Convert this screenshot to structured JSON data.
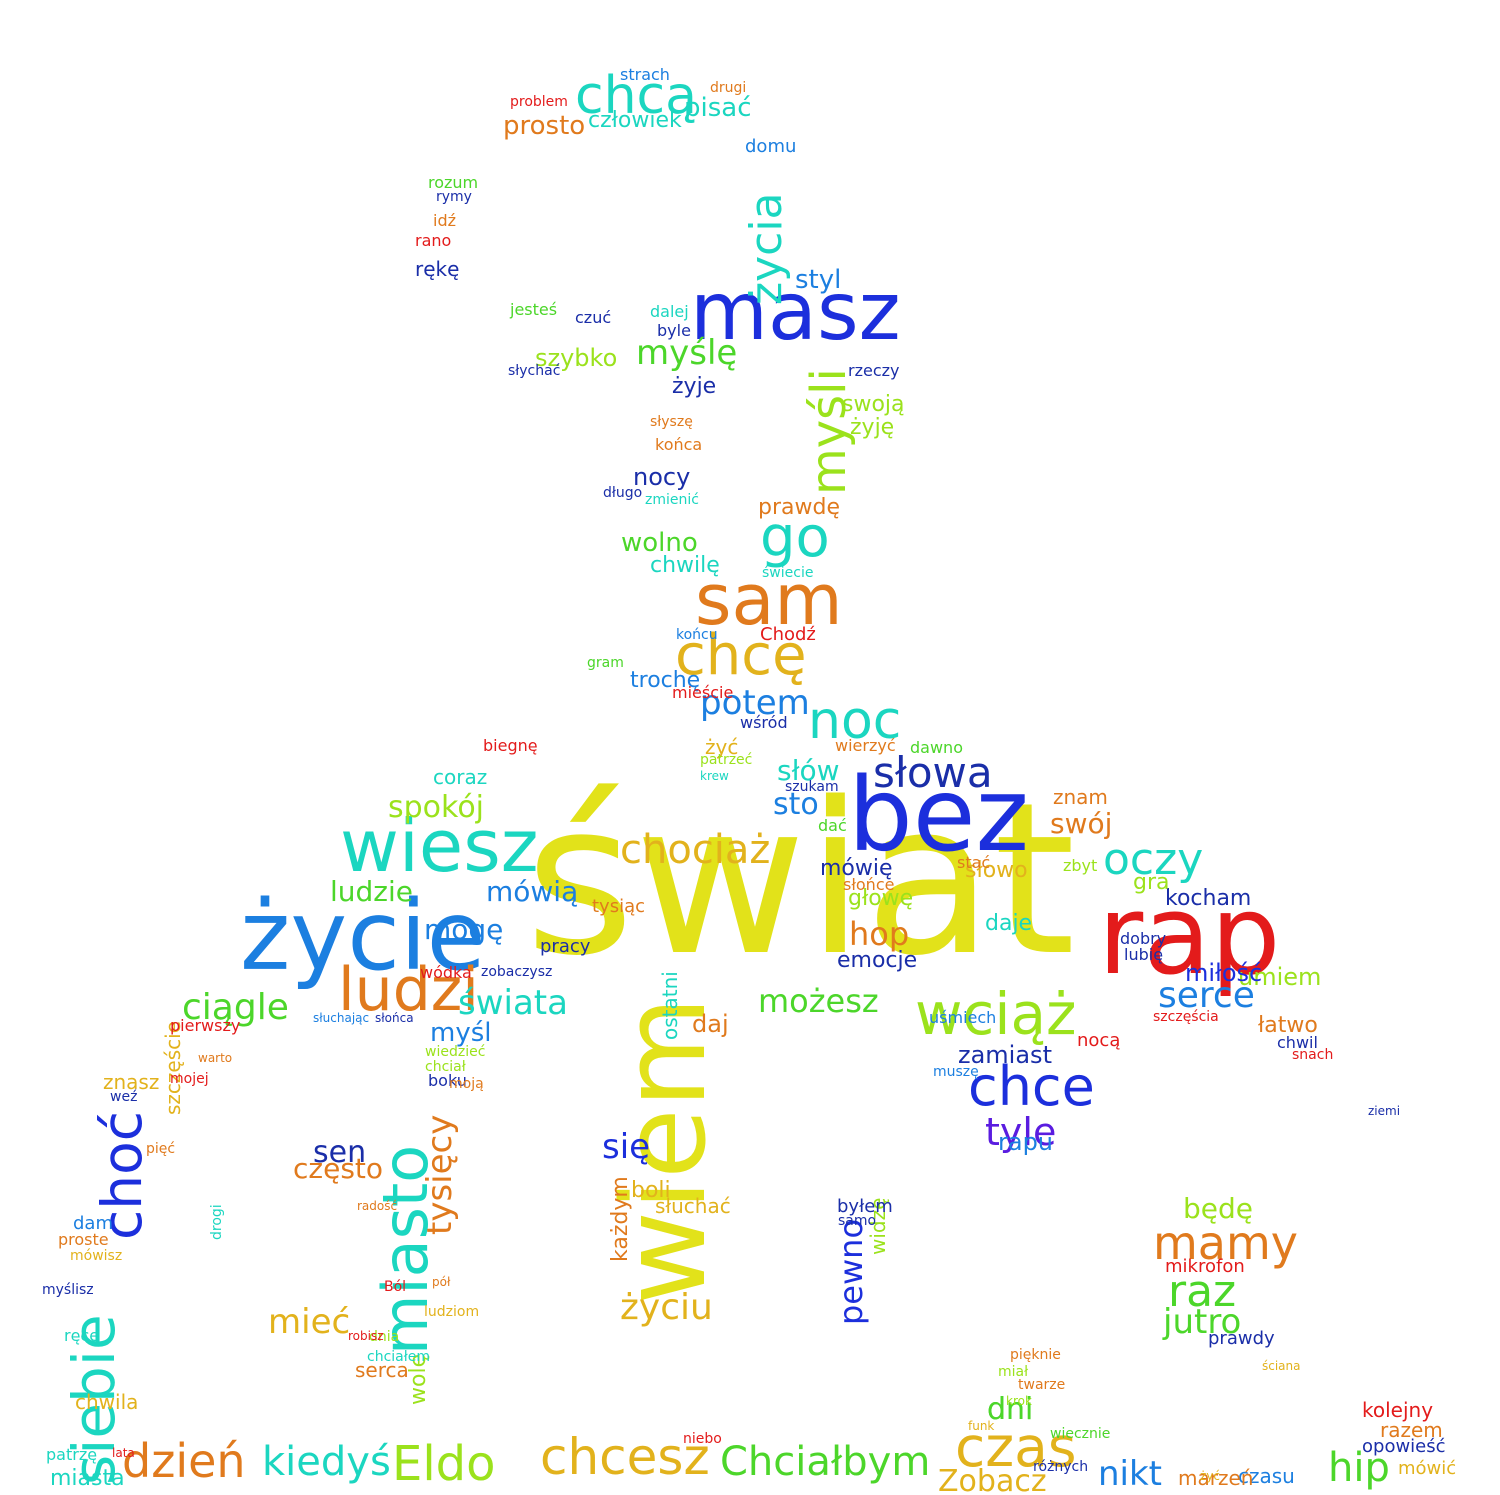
{
  "colors": {
    "yellow": "#e2e21a",
    "blue": "#1c2fdc",
    "red": "#e31b1b",
    "orange": "#e07a1d",
    "teal": "#1bd6c0",
    "green": "#4cd62a",
    "lime": "#9be21c",
    "sky": "#1c7fe0",
    "gold": "#e2b21c",
    "navy": "#1a2ea8",
    "violet": "#5a1ce0"
  },
  "words": [
    {
      "id": "swiat",
      "text": "świat",
      "color": "yellow"
    },
    {
      "id": "bez",
      "text": "bez",
      "color": "blue"
    },
    {
      "id": "rap",
      "text": "rap",
      "color": "red"
    },
    {
      "id": "wiem",
      "text": "wiem",
      "color": "yellow"
    },
    {
      "id": "zycie",
      "text": "życie",
      "color": "sky"
    },
    {
      "id": "wiesz",
      "text": "wiesz",
      "color": "teal"
    },
    {
      "id": "masz",
      "text": "masz",
      "color": "blue"
    },
    {
      "id": "sam",
      "text": "sam",
      "color": "orange"
    },
    {
      "id": "chce-top",
      "text": "chcą",
      "color": "teal"
    },
    {
      "id": "chcesz",
      "text": "chcesz",
      "color": "gold"
    },
    {
      "id": "czas",
      "text": "czas",
      "color": "gold"
    },
    {
      "id": "eldo",
      "text": "Eldo",
      "color": "lime"
    },
    {
      "id": "dzien",
      "text": "dzień",
      "color": "orange"
    },
    {
      "id": "kiedys",
      "text": "kiedyś",
      "color": "teal"
    },
    {
      "id": "chcialbym",
      "text": "Chciałbym",
      "color": "green"
    },
    {
      "id": "ludzi",
      "text": "ludzi",
      "color": "orange"
    },
    {
      "id": "wciaz",
      "text": "wciąż",
      "color": "lime"
    },
    {
      "id": "chce",
      "text": "chce",
      "color": "blue"
    },
    {
      "id": "miasto",
      "text": "miasto",
      "color": "teal"
    },
    {
      "id": "siebie",
      "text": "siebie",
      "color": "teal"
    },
    {
      "id": "choc",
      "text": "choć",
      "color": "blue"
    },
    {
      "id": "noc",
      "text": "noc",
      "color": "teal"
    },
    {
      "id": "chce2",
      "text": "chcę",
      "color": "gold"
    },
    {
      "id": "go",
      "text": "go",
      "color": "teal"
    },
    {
      "id": "zycia",
      "text": "życia",
      "color": "teal"
    },
    {
      "id": "mysli",
      "text": "myśli",
      "color": "lime"
    },
    {
      "id": "slowa",
      "text": "słowa",
      "color": "navy"
    },
    {
      "id": "potem",
      "text": "potem",
      "color": "sky"
    },
    {
      "id": "chociaz",
      "text": "chociaż",
      "color": "gold"
    },
    {
      "id": "oczy",
      "text": "oczy",
      "color": "teal"
    },
    {
      "id": "mamy",
      "text": "mamy",
      "color": "orange"
    },
    {
      "id": "raz",
      "text": "raz",
      "color": "green"
    },
    {
      "id": "jutro",
      "text": "jutro",
      "color": "green"
    },
    {
      "id": "serce",
      "text": "serce",
      "color": "sky"
    },
    {
      "id": "mozesz",
      "text": "możesz",
      "color": "green"
    },
    {
      "id": "swiata",
      "text": "świata",
      "color": "teal"
    },
    {
      "id": "ciagle",
      "text": "ciągle",
      "color": "green"
    },
    {
      "id": "tysiecy",
      "text": "tysięcy",
      "color": "orange"
    },
    {
      "id": "zyciu",
      "text": "życiu",
      "color": "gold"
    },
    {
      "id": "miec",
      "text": "mieć",
      "color": "gold"
    },
    {
      "id": "tyle",
      "text": "tyle",
      "color": "violet"
    },
    {
      "id": "hip",
      "text": "hip",
      "color": "green"
    },
    {
      "id": "nikt",
      "text": "nikt",
      "color": "sky"
    },
    {
      "id": "zobacz",
      "text": "Zobacz",
      "color": "gold"
    },
    {
      "id": "dni",
      "text": "dni",
      "color": "green"
    },
    {
      "id": "myśle",
      "text": "myślę",
      "color": "green"
    },
    {
      "id": "sto",
      "text": "sto",
      "color": "sky"
    },
    {
      "id": "slow",
      "text": "słów",
      "color": "teal"
    },
    {
      "id": "spokoj",
      "text": "spokój",
      "color": "lime"
    },
    {
      "id": "ludzie",
      "text": "ludzie",
      "color": "green"
    },
    {
      "id": "mowia",
      "text": "mówią",
      "color": "sky"
    },
    {
      "id": "moge",
      "text": "mogę",
      "color": "sky"
    },
    {
      "id": "pewno",
      "text": "pewno",
      "color": "blue"
    },
    {
      "id": "sen",
      "text": "sen",
      "color": "navy"
    },
    {
      "id": "czesto",
      "text": "często",
      "color": "orange"
    },
    {
      "id": "sie",
      "text": "się",
      "color": "blue"
    },
    {
      "id": "bede",
      "text": "będę",
      "color": "lime"
    },
    {
      "id": "zamiast",
      "text": "zamiast",
      "color": "navy"
    },
    {
      "id": "swoj",
      "text": "swój",
      "color": "orange"
    },
    {
      "id": "hop",
      "text": "hop",
      "color": "orange"
    },
    {
      "id": "wolno",
      "text": "wolno",
      "color": "green"
    },
    {
      "id": "prosto",
      "text": "prosto",
      "color": "orange"
    },
    {
      "id": "pisac",
      "text": "pisać",
      "color": "teal"
    },
    {
      "id": "czlowiek",
      "text": "człowiek",
      "color": "teal"
    },
    {
      "id": "szybko",
      "text": "szybko",
      "color": "lime"
    },
    {
      "id": "kocham",
      "text": "kocham",
      "color": "navy"
    },
    {
      "id": "umiem",
      "text": "umiem",
      "color": "lime"
    },
    {
      "id": "milosc",
      "text": "miłość",
      "color": "blue"
    },
    {
      "id": "latwo",
      "text": "łatwo",
      "color": "orange"
    },
    {
      "id": "rapu",
      "text": "rapu",
      "color": "sky"
    },
    {
      "id": "mysl",
      "text": "myśl",
      "color": "sky"
    },
    {
      "id": "daj",
      "text": "daj",
      "color": "orange"
    },
    {
      "id": "ostatni",
      "text": "ostatni",
      "color": "teal"
    },
    {
      "id": "styl",
      "text": "styl",
      "color": "sky"
    },
    {
      "id": "nocy",
      "text": "nocy",
      "color": "navy"
    },
    {
      "id": "prawde",
      "text": "prawdę",
      "color": "orange"
    },
    {
      "id": "chwile",
      "text": "chwilę",
      "color": "teal"
    },
    {
      "id": "zyje",
      "text": "żyje",
      "color": "navy"
    },
    {
      "id": "zyje2",
      "text": "żyję",
      "color": "lime"
    },
    {
      "id": "swoja",
      "text": "swoją",
      "color": "lime"
    },
    {
      "id": "strach",
      "text": "strach",
      "color": "sky"
    },
    {
      "id": "domu",
      "text": "domu",
      "color": "sky"
    },
    {
      "id": "znam",
      "text": "znam",
      "color": "orange"
    },
    {
      "id": "slowo",
      "text": "słowo",
      "color": "gold"
    },
    {
      "id": "mowie",
      "text": "mówię",
      "color": "navy"
    },
    {
      "id": "glowe",
      "text": "głowę",
      "color": "lime"
    },
    {
      "id": "emocje",
      "text": "emocje",
      "color": "navy"
    },
    {
      "id": "daje",
      "text": "daje",
      "color": "teal"
    },
    {
      "id": "gra",
      "text": "gra",
      "color": "lime"
    },
    {
      "id": "noca",
      "text": "nocą",
      "color": "red"
    },
    {
      "id": "miasta",
      "text": "miasta",
      "color": "teal"
    },
    {
      "id": "czasu",
      "text": "czasu",
      "color": "sky"
    },
    {
      "id": "marzen",
      "text": "marzeń",
      "color": "orange"
    },
    {
      "id": "razem",
      "text": "razem",
      "color": "orange"
    },
    {
      "id": "prawdy",
      "text": "prawdy",
      "color": "navy"
    },
    {
      "id": "mikrofon",
      "text": "mikrofon",
      "color": "red"
    },
    {
      "id": "chodz",
      "text": "Chodź",
      "color": "red"
    },
    {
      "id": "troche",
      "text": "trochę",
      "color": "sky"
    },
    {
      "id": "biegne",
      "text": "biegnę",
      "color": "red"
    },
    {
      "id": "coraz",
      "text": "coraz",
      "color": "teal"
    },
    {
      "id": "boli",
      "text": "boli",
      "color": "gold"
    },
    {
      "id": "sluchac",
      "text": "słuchać",
      "color": "gold"
    },
    {
      "id": "kazdym",
      "text": "każdym",
      "color": "orange"
    },
    {
      "id": "szczescie",
      "text": "szczęście",
      "color": "gold"
    },
    {
      "id": "znasz",
      "text": "znasz",
      "color": "gold"
    },
    {
      "id": "wole",
      "text": "wolę",
      "color": "lime"
    },
    {
      "id": "serca",
      "text": "serca",
      "color": "orange"
    },
    {
      "id": "chwila",
      "text": "chwila",
      "color": "gold"
    },
    {
      "id": "kolejny",
      "text": "kolejny",
      "color": "red"
    },
    {
      "id": "mowic",
      "text": "mówić",
      "color": "gold"
    },
    {
      "id": "opowiesc",
      "text": "opowieść",
      "color": "navy"
    },
    {
      "id": "pierwszy",
      "text": "pierwszy",
      "color": "red"
    },
    {
      "id": "bede2",
      "text": "żyć",
      "color": "gold"
    },
    {
      "id": "wodka",
      "text": "wódka",
      "color": "red"
    },
    {
      "id": "zobaczysz",
      "text": "zobaczysz",
      "color": "navy"
    },
    {
      "id": "pracy",
      "text": "pracy",
      "color": "navy"
    },
    {
      "id": "tysiac",
      "text": "tysiąc",
      "color": "orange"
    },
    {
      "id": "dzis",
      "text": "mieście",
      "color": "red"
    },
    {
      "id": "wsrod",
      "text": "wśród",
      "color": "navy"
    },
    {
      "id": "patrzec",
      "text": "patrzeć",
      "color": "lime"
    },
    {
      "id": "dawno",
      "text": "dawno",
      "color": "green"
    },
    {
      "id": "wierzyc",
      "text": "wierzyć",
      "color": "orange"
    },
    {
      "id": "usmiech",
      "text": "uśmiech",
      "color": "sky"
    },
    {
      "id": "dobry",
      "text": "dobry",
      "color": "navy"
    },
    {
      "id": "lubie",
      "text": "lubię",
      "color": "navy"
    },
    {
      "id": "szczescia",
      "text": "szczęścia",
      "color": "red"
    },
    {
      "id": "juz",
      "text": "dni",
      "color": "green"
    },
    {
      "id": "widze",
      "text": "widzę",
      "color": "lime"
    },
    {
      "id": "bylem",
      "text": "byłem",
      "color": "navy"
    },
    {
      "id": "sami",
      "text": "samo",
      "color": "navy"
    },
    {
      "id": "mogu",
      "text": "muszę",
      "color": "sky"
    },
    {
      "id": "pieknie",
      "text": "pięknie",
      "color": "orange"
    },
    {
      "id": "rece",
      "text": "ręce",
      "color": "teal"
    },
    {
      "id": "reke",
      "text": "rękę",
      "color": "navy"
    },
    {
      "id": "rano",
      "text": "rano",
      "color": "red"
    },
    {
      "id": "idz",
      "text": "idź",
      "color": "orange"
    },
    {
      "id": "rozum",
      "text": "rozum",
      "color": "green"
    },
    {
      "id": "rymy",
      "text": "rymy",
      "color": "navy"
    },
    {
      "id": "jestes",
      "text": "jesteś",
      "color": "green"
    },
    {
      "id": "czuc",
      "text": "czuć",
      "color": "navy"
    },
    {
      "id": "slychac",
      "text": "słychać",
      "color": "navy"
    },
    {
      "id": "dalej",
      "text": "dalej",
      "color": "teal"
    },
    {
      "id": "byle",
      "text": "byle",
      "color": "navy"
    },
    {
      "id": "rzeczy",
      "text": "rzeczy",
      "color": "navy"
    },
    {
      "id": "konca",
      "text": "końca",
      "color": "orange"
    },
    {
      "id": "slysze",
      "text": "słyszę",
      "color": "orange"
    },
    {
      "id": "zmienic",
      "text": "zmienić",
      "color": "teal"
    },
    {
      "id": "dlugo",
      "text": "długo",
      "color": "navy"
    },
    {
      "id": "swiecie",
      "text": "świecie",
      "color": "teal"
    },
    {
      "id": "konczu",
      "text": "końcu",
      "color": "sky"
    },
    {
      "id": "gram",
      "text": "gram",
      "color": "green"
    },
    {
      "id": "krew",
      "text": "krew",
      "color": "teal"
    },
    {
      "id": "problem",
      "text": "problem",
      "color": "red"
    },
    {
      "id": "drugi",
      "text": "drugi",
      "color": "orange"
    },
    {
      "id": "dac",
      "text": "dać",
      "color": "green"
    },
    {
      "id": "stac",
      "text": "stać",
      "color": "orange"
    },
    {
      "id": "zbyt",
      "text": "zbyt",
      "color": "lime"
    },
    {
      "id": "slonce",
      "text": "słońce",
      "color": "orange"
    },
    {
      "id": "chwil",
      "text": "chwil",
      "color": "navy"
    },
    {
      "id": "snach",
      "text": "snach",
      "color": "red"
    },
    {
      "id": "ziemi",
      "text": "ziemi",
      "color": "navy"
    },
    {
      "id": "mozna",
      "text": "dam",
      "color": "sky"
    },
    {
      "id": "proste",
      "text": "proste",
      "color": "orange"
    },
    {
      "id": "mowisz",
      "text": "mówisz",
      "color": "gold"
    },
    {
      "id": "mysliz",
      "text": "myślisz",
      "color": "navy"
    },
    {
      "id": "piec",
      "text": "pięć",
      "color": "orange"
    },
    {
      "id": "mojej",
      "text": "mojej",
      "color": "red"
    },
    {
      "id": "wez",
      "text": "weź",
      "color": "navy"
    },
    {
      "id": "lat",
      "text": "lata",
      "color": "red"
    },
    {
      "id": "patrze",
      "text": "patrzę",
      "color": "teal"
    },
    {
      "id": "niebo",
      "text": "niebo",
      "color": "red"
    },
    {
      "id": "drogi",
      "text": "drogi",
      "color": "teal"
    },
    {
      "id": "wiedziec",
      "text": "wiedzieć",
      "color": "lime"
    },
    {
      "id": "chcial",
      "text": "chciał",
      "color": "lime"
    },
    {
      "id": "boku",
      "text": "boku",
      "color": "navy"
    },
    {
      "id": "moja",
      "text": "moją",
      "color": "orange"
    },
    {
      "id": "ludziom",
      "text": "ludziom",
      "color": "gold"
    },
    {
      "id": "dnia",
      "text": "dnia",
      "color": "lime"
    },
    {
      "id": "chcialem",
      "text": "chciałem",
      "color": "teal"
    },
    {
      "id": "robisz",
      "text": "robisz",
      "color": "red"
    },
    {
      "id": "pol",
      "text": "pół",
      "color": "orange"
    },
    {
      "id": "bol",
      "text": "Ból",
      "color": "red"
    },
    {
      "id": "radosc",
      "text": "radość",
      "color": "orange"
    },
    {
      "id": "sluchajac",
      "text": "słuchając",
      "color": "sky"
    },
    {
      "id": "slonca",
      "text": "słońca",
      "color": "navy"
    },
    {
      "id": "warto",
      "text": "warto",
      "color": "orange"
    },
    {
      "id": "pytam",
      "text": "szukam",
      "color": "navy"
    },
    {
      "id": "wiecznie",
      "text": "wiecznie",
      "color": "green"
    },
    {
      "id": "krok",
      "text": "krok",
      "color": "lime"
    },
    {
      "id": "funk",
      "text": "funk",
      "color": "gold"
    },
    {
      "id": "twarze",
      "text": "twarze",
      "color": "orange"
    },
    {
      "id": "mial",
      "text": "miał",
      "color": "lime"
    },
    {
      "id": "rozniych",
      "text": "różnych",
      "color": "navy"
    },
    {
      "id": "smutek",
      "text": "ściana",
      "color": "gold"
    },
    {
      "id": "zycie2",
      "text": "żyć",
      "color": "gold"
    }
  ]
}
